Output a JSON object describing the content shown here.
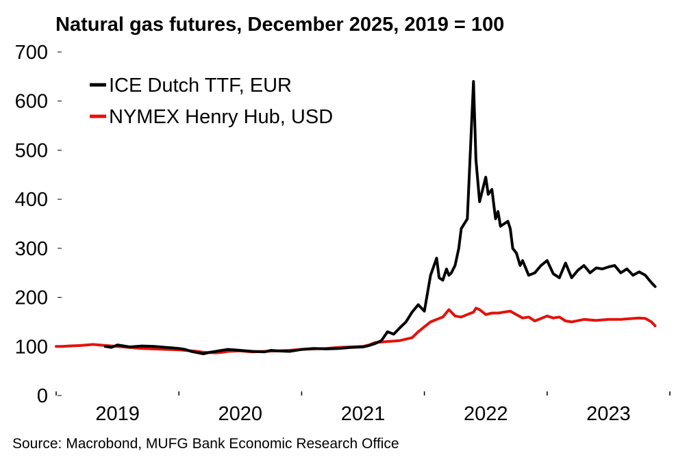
{
  "chart_data": {
    "type": "line",
    "title": "Natural gas futures, December 2025, 2019 = 100",
    "source": "Source: Macrobond, MUFG Bank Economic Research Office",
    "xlabel": "",
    "ylabel": "",
    "ylim": [
      0,
      700
    ],
    "yticks": [
      0,
      100,
      200,
      300,
      400,
      500,
      600,
      700
    ],
    "xlim": [
      2019.0,
      2024.0
    ],
    "xticks": [
      {
        "label": "2019",
        "center": 2019.5
      },
      {
        "label": "2020",
        "center": 2020.5
      },
      {
        "label": "2021",
        "center": 2021.5
      },
      {
        "label": "2022",
        "center": 2022.5
      },
      {
        "label": "2023",
        "center": 2023.5
      }
    ],
    "year_boundaries": [
      2019.0,
      2020.0,
      2021.0,
      2022.0,
      2023.0,
      2024.0
    ],
    "grid": false,
    "legend_position": "top-left",
    "series": [
      {
        "name": "ICE Dutch TTF, EUR",
        "color": "#000000",
        "x": [
          2019.4,
          2019.45,
          2019.5,
          2019.6,
          2019.7,
          2019.8,
          2019.9,
          2020.0,
          2020.05,
          2020.1,
          2020.2,
          2020.25,
          2020.3,
          2020.35,
          2020.4,
          2020.45,
          2020.5,
          2020.6,
          2020.7,
          2020.75,
          2020.8,
          2020.9,
          2021.0,
          2021.1,
          2021.2,
          2021.3,
          2021.4,
          2021.5,
          2021.55,
          2021.6,
          2021.65,
          2021.7,
          2021.75,
          2021.8,
          2021.85,
          2021.9,
          2021.95,
          2022.0,
          2022.05,
          2022.1,
          2022.12,
          2022.15,
          2022.18,
          2022.2,
          2022.22,
          2022.25,
          2022.28,
          2022.3,
          2022.35,
          2022.4,
          2022.42,
          2022.45,
          2022.5,
          2022.52,
          2022.55,
          2022.58,
          2022.6,
          2022.62,
          2022.65,
          2022.68,
          2022.7,
          2022.72,
          2022.75,
          2022.78,
          2022.8,
          2022.85,
          2022.9,
          2022.95,
          2023.0,
          2023.05,
          2023.1,
          2023.15,
          2023.2,
          2023.25,
          2023.3,
          2023.35,
          2023.4,
          2023.45,
          2023.5,
          2023.55,
          2023.6,
          2023.65,
          2023.7,
          2023.75,
          2023.8,
          2023.85,
          2023.88
        ],
        "values": [
          100,
          98,
          103,
          99,
          101,
          100,
          98,
          96,
          94,
          90,
          85,
          88,
          90,
          92,
          94,
          93,
          92,
          90,
          89,
          92,
          91,
          90,
          94,
          96,
          95,
          96,
          98,
          99,
          102,
          106,
          112,
          130,
          125,
          138,
          150,
          170,
          185,
          172,
          245,
          280,
          240,
          235,
          258,
          245,
          250,
          265,
          300,
          340,
          360,
          640,
          480,
          395,
          445,
          410,
          420,
          360,
          375,
          345,
          350,
          355,
          340,
          300,
          290,
          265,
          275,
          245,
          250,
          265,
          275,
          248,
          240,
          270,
          240,
          255,
          265,
          250,
          260,
          258,
          262,
          265,
          250,
          258,
          245,
          252,
          245,
          230,
          222
        ]
      },
      {
        "name": "NYMEX Henry Hub, USD",
        "color": "#e3120b",
        "x": [
          2019.0,
          2019.05,
          2019.1,
          2019.2,
          2019.25,
          2019.3,
          2019.4,
          2019.5,
          2019.6,
          2019.7,
          2019.8,
          2019.9,
          2020.0,
          2020.1,
          2020.15,
          2020.2,
          2020.3,
          2020.35,
          2020.4,
          2020.5,
          2020.6,
          2020.7,
          2020.8,
          2020.9,
          2021.0,
          2021.1,
          2021.2,
          2021.3,
          2021.4,
          2021.5,
          2021.55,
          2021.6,
          2021.7,
          2021.8,
          2021.9,
          2021.95,
          2022.0,
          2022.05,
          2022.1,
          2022.15,
          2022.2,
          2022.25,
          2022.3,
          2022.35,
          2022.4,
          2022.42,
          2022.45,
          2022.5,
          2022.55,
          2022.6,
          2022.7,
          2022.75,
          2022.8,
          2022.85,
          2022.9,
          2023.0,
          2023.05,
          2023.1,
          2023.15,
          2023.2,
          2023.3,
          2023.4,
          2023.5,
          2023.6,
          2023.7,
          2023.75,
          2023.8,
          2023.85,
          2023.88
        ],
        "values": [
          100,
          100,
          101,
          102,
          103,
          104,
          102,
          100,
          98,
          96,
          95,
          94,
          93,
          91,
          90,
          88,
          87,
          88,
          90,
          91,
          89,
          90,
          91,
          92,
          94,
          95,
          96,
          98,
          99,
          100,
          103,
          108,
          110,
          112,
          118,
          130,
          140,
          150,
          155,
          160,
          175,
          162,
          160,
          165,
          170,
          178,
          175,
          165,
          168,
          168,
          172,
          165,
          158,
          160,
          152,
          162,
          158,
          160,
          152,
          150,
          155,
          153,
          155,
          155,
          157,
          158,
          157,
          150,
          142
        ]
      }
    ]
  }
}
